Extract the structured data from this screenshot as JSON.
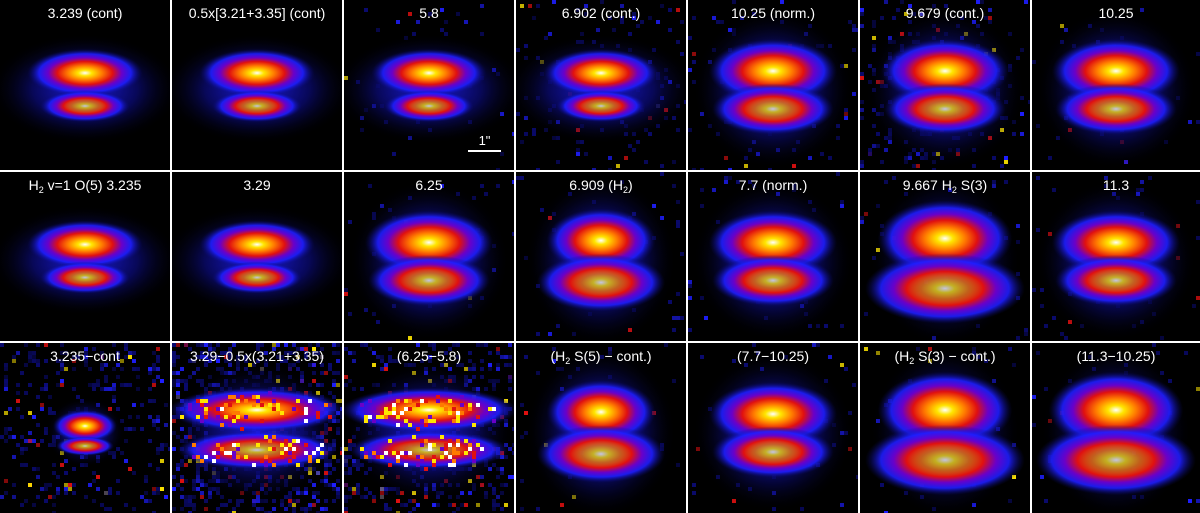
{
  "colormap": [
    "#000000",
    "#0a0a6e",
    "#1e1eff",
    "#6a00c8",
    "#e01010",
    "#ff7a00",
    "#ffe600",
    "#ffffff"
  ],
  "scale_bar": {
    "label": "1\""
  },
  "rows": [
    {
      "panels": [
        {
          "parts": [
            "3.239 (cont)"
          ],
          "morph": "elliptical",
          "intensity": 1.0,
          "noise": 0.0
        },
        {
          "parts": [
            "0.5x[3.21+3.35] (cont)"
          ],
          "morph": "elliptical",
          "intensity": 1.0,
          "noise": 0.0
        },
        {
          "parts": [
            "5.8"
          ],
          "morph": "elliptical",
          "intensity": 0.9,
          "noise": 0.05
        },
        {
          "parts": [
            "6.902 (cont.)"
          ],
          "morph": "elliptical",
          "intensity": 0.85,
          "noise": 0.15
        },
        {
          "parts": [
            "10.25 (norm.)"
          ],
          "morph": "broad",
          "intensity": 1.0,
          "noise": 0.1
        },
        {
          "parts": [
            "9.679 (cont.)"
          ],
          "morph": "broad",
          "intensity": 1.0,
          "noise": 0.25
        },
        {
          "parts": [
            "10.25"
          ],
          "morph": "broad",
          "intensity": 1.0,
          "noise": 0.05
        }
      ]
    },
    {
      "panels": [
        {
          "parts": [
            "H",
            "2",
            " v=1 O(5) 3.235"
          ],
          "morph": "elliptical",
          "intensity": 1.0,
          "noise": 0.0
        },
        {
          "parts": [
            "3.29"
          ],
          "morph": "elliptical",
          "intensity": 1.0,
          "noise": 0.0
        },
        {
          "parts": [
            "6.25"
          ],
          "morph": "broad",
          "intensity": 0.95,
          "noise": 0.05
        },
        {
          "parts": [
            "6.909 (H",
            "2",
            ")"
          ],
          "morph": "hourglass",
          "intensity": 1.0,
          "noise": 0.05
        },
        {
          "parts": [
            "7.7 (norm.)"
          ],
          "morph": "broad",
          "intensity": 1.0,
          "noise": 0.05
        },
        {
          "parts": [
            "9.667 H",
            "2",
            " S(3)"
          ],
          "morph": "hourglass-wide",
          "intensity": 1.0,
          "noise": 0.05
        },
        {
          "parts": [
            "11.3"
          ],
          "morph": "broad",
          "intensity": 1.0,
          "noise": 0.05
        }
      ]
    },
    {
      "panels": [
        {
          "parts": [
            "3.235−cont"
          ],
          "morph": "compact",
          "intensity": 0.9,
          "noise": 0.35
        },
        {
          "parts": [
            "3.29−0.5x(3.21+3.35)"
          ],
          "morph": "arcs-noisy",
          "intensity": 1.0,
          "noise": 0.9
        },
        {
          "parts": [
            "(6.25−5.8)"
          ],
          "morph": "arcs-x",
          "intensity": 1.0,
          "noise": 0.5
        },
        {
          "parts": [
            "(H",
            "2",
            " S(5) − cont.)"
          ],
          "morph": "hourglass",
          "intensity": 1.0,
          "noise": 0.05
        },
        {
          "parts": [
            "(7.7−10.25)"
          ],
          "morph": "broad",
          "intensity": 1.0,
          "noise": 0.05
        },
        {
          "parts": [
            "(H",
            "2",
            " S(3) − cont.)"
          ],
          "morph": "hourglass-wide",
          "intensity": 1.0,
          "noise": 0.05
        },
        {
          "parts": [
            "(11.3−10.25)"
          ],
          "morph": "hourglass-wide",
          "intensity": 1.0,
          "noise": 0.05
        }
      ]
    }
  ]
}
